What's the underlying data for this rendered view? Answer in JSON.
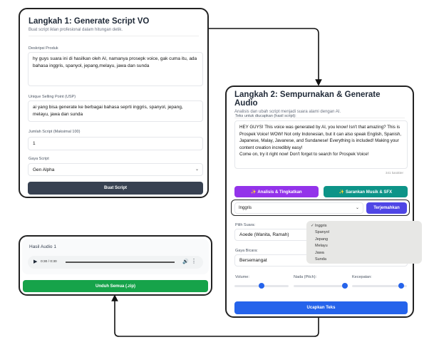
{
  "step1": {
    "title": "Langkah 1: Generate Script VO",
    "subtitle": "Buat script iklan profesional dalam hitungan detik.",
    "desc_label": "Deskripsi Produk",
    "desc_value": "hy guys suara ini di hasilkan oleh AI, namanya prosepk voice, gak cuma itu, ada bahasa inggris, spanyol, jepang,melayu, jawa dan sunda",
    "usp_label": "Unique Selling Point (USP)",
    "usp_value": "ai yang bisa generate ke berbagai bahasa seprti inggris, spanyol, jepang, melayu, jawa dan sunda",
    "count_label": "Jumlah Script (Maksimal 100)",
    "count_value": "1",
    "style_label": "Gaya Script",
    "style_value": "Gen Alpha",
    "submit": "Buat Script"
  },
  "step2": {
    "title": "Langkah 2: Sempurnakan & Generate Audio",
    "subtitle": "Analisis dan ubah script menjadi suara alami dengan AI.",
    "text_label": "Teks untuk diucapkan (hasil script):",
    "text_value": "HEY GUYS! This voice was generated by AI, you know! Isn't that amazing? This is Prospek Voice! WOW! Not only Indonesian, but it can also speak English, Spanish, Japanese, Malay, Javanese, and Sundanese! Everything is included! Making your content creation incredibly easy!\nCome on, try it right now! Don't forget to search for Prospek Voice!",
    "char_count": "341 karakter",
    "analyze": "✨ Analisis & Tingkatkan",
    "suggest": "✨ Sarankan Musik & SFX",
    "language_value": "Inggris",
    "translate": "Terjemahkan",
    "voice_label": "Pilih Suara:",
    "voice_value": "Aoede (Wanita, Ramah)",
    "speech_label": "Gaya Bicara:",
    "speech_value": "Bersemangat",
    "volume_label": "Volume:",
    "pitch_label": "Nada (Pitch):",
    "speed_label": "Kecepatan:",
    "volume_level": 0.5,
    "pitch_level": 0.95,
    "speed_level": 0.9,
    "speak": "Ucapkan Teks",
    "colors": {
      "analyze": "#9333ea",
      "suggest": "#0d9488",
      "translate": "#4f46e5",
      "speak": "#2563eb"
    }
  },
  "dropdown": {
    "options": [
      "Inggris",
      "Spanyol",
      "Jepang",
      "Melayu",
      "Jawa",
      "Sunda"
    ],
    "selected": "Inggris",
    "check": "✓"
  },
  "result": {
    "title": "Hasil Audio 1",
    "time": "0:30 / 0:30",
    "download": "Unduh Semua (.zip)",
    "download_color": "#16a34a"
  }
}
